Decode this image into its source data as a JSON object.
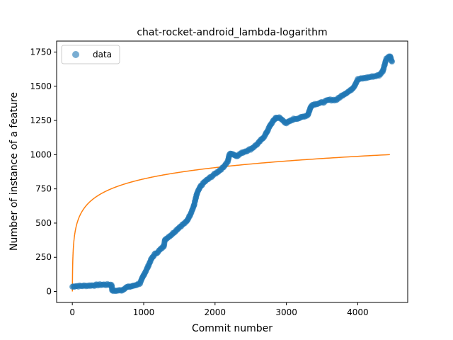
{
  "chart_data": {
    "type": "scatter",
    "title": "chat-rocket-android_lambda-logarithm",
    "xlabel": "Commit number",
    "ylabel": "Number of instance of a feature",
    "xlim": [
      -220,
      4700
    ],
    "ylim": [
      -80,
      1830
    ],
    "x_ticks": [
      0,
      1000,
      2000,
      3000,
      4000
    ],
    "y_ticks": [
      0,
      250,
      500,
      750,
      1000,
      1250,
      1500,
      1750
    ],
    "grid": false,
    "legend": {
      "position": "top-left",
      "entries": [
        "data"
      ]
    },
    "colors": {
      "data": "#1f77b4",
      "fit": "#ff7f0e"
    },
    "series": [
      {
        "name": "data",
        "kind": "scatter",
        "anchors": [
          [
            0,
            35
          ],
          [
            40,
            40
          ],
          [
            100,
            40
          ],
          [
            300,
            45
          ],
          [
            400,
            50
          ],
          [
            550,
            50
          ],
          [
            560,
            5
          ],
          [
            600,
            5
          ],
          [
            700,
            10
          ],
          [
            750,
            30
          ],
          [
            800,
            35
          ],
          [
            850,
            40
          ],
          [
            950,
            60
          ],
          [
            1000,
            120
          ],
          [
            1050,
            170
          ],
          [
            1100,
            230
          ],
          [
            1150,
            270
          ],
          [
            1200,
            290
          ],
          [
            1280,
            330
          ],
          [
            1300,
            380
          ],
          [
            1400,
            420
          ],
          [
            1500,
            470
          ],
          [
            1550,
            490
          ],
          [
            1600,
            510
          ],
          [
            1650,
            560
          ],
          [
            1700,
            620
          ],
          [
            1750,
            720
          ],
          [
            1800,
            770
          ],
          [
            1850,
            800
          ],
          [
            1900,
            820
          ],
          [
            1950,
            840
          ],
          [
            2000,
            860
          ],
          [
            2100,
            900
          ],
          [
            2180,
            950
          ],
          [
            2200,
            1000
          ],
          [
            2230,
            1010
          ],
          [
            2300,
            990
          ],
          [
            2400,
            1020
          ],
          [
            2500,
            1040
          ],
          [
            2600,
            1080
          ],
          [
            2700,
            1140
          ],
          [
            2780,
            1220
          ],
          [
            2850,
            1270
          ],
          [
            2900,
            1270
          ],
          [
            3000,
            1230
          ],
          [
            3100,
            1260
          ],
          [
            3200,
            1270
          ],
          [
            3300,
            1290
          ],
          [
            3350,
            1360
          ],
          [
            3400,
            1370
          ],
          [
            3500,
            1380
          ],
          [
            3600,
            1400
          ],
          [
            3700,
            1400
          ],
          [
            3800,
            1440
          ],
          [
            3900,
            1470
          ],
          [
            3950,
            1500
          ],
          [
            4000,
            1550
          ],
          [
            4100,
            1560
          ],
          [
            4200,
            1570
          ],
          [
            4300,
            1580
          ],
          [
            4350,
            1610
          ],
          [
            4400,
            1700
          ],
          [
            4450,
            1720
          ],
          [
            4480,
            1680
          ]
        ]
      },
      {
        "name": "",
        "kind": "line",
        "function": "y = 119.1 * ln(x) for x from 1 to 4450"
      }
    ]
  }
}
